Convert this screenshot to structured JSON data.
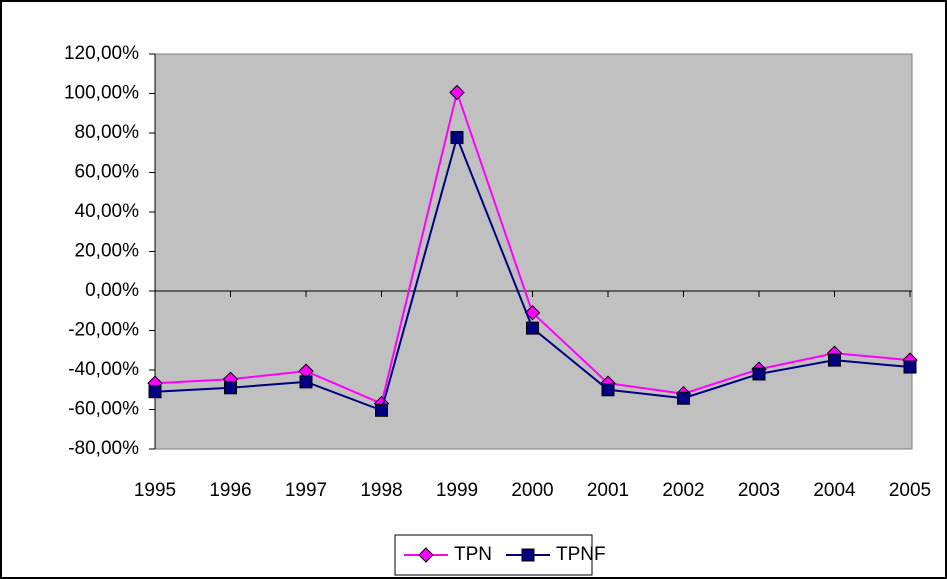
{
  "chart_data": {
    "type": "line",
    "categories": [
      "1995",
      "1996",
      "1997",
      "1998",
      "1999",
      "2000",
      "2001",
      "2002",
      "2003",
      "2004",
      "2005"
    ],
    "series": [
      {
        "name": "TPN",
        "color": "#ff00ff",
        "marker": "diamond",
        "values": [
          -46.7,
          -44.7,
          -40.6,
          -57,
          100.5,
          -11,
          -46.7,
          -52,
          -39.6,
          -31.5,
          -35
        ]
      },
      {
        "name": "TPNF",
        "color": "#000080",
        "marker": "square",
        "values": [
          -51,
          -49,
          -46,
          -60.4,
          77.7,
          -18.8,
          -50,
          -54.3,
          -42,
          -35,
          -38.5
        ]
      }
    ],
    "ylim": [
      -80,
      120
    ],
    "yticks": [
      {
        "value": -80,
        "label": "-80,00%"
      },
      {
        "value": -60,
        "label": "-60,00%"
      },
      {
        "value": -40,
        "label": "-40,00%"
      },
      {
        "value": -20,
        "label": "-20,00%"
      },
      {
        "value": 0,
        "label": "0,00%"
      },
      {
        "value": 20,
        "label": "20,00%"
      },
      {
        "value": 40,
        "label": "40,00%"
      },
      {
        "value": 60,
        "label": "60,00%"
      },
      {
        "value": 80,
        "label": "80,00%"
      },
      {
        "value": 100,
        "label": "100,00%"
      },
      {
        "value": 120,
        "label": "120,00%"
      }
    ],
    "grid": false,
    "legend": "bottom"
  }
}
